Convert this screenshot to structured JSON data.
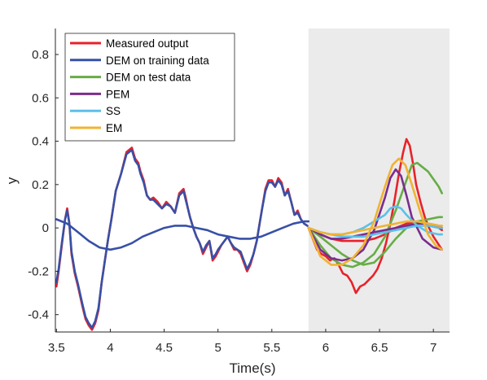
{
  "chart_data": {
    "type": "line",
    "title": "",
    "xlabel": "Time(s)",
    "ylabel": "y",
    "xlim": [
      3.49,
      7.15
    ],
    "ylim": [
      -0.48,
      0.92
    ],
    "xticks": [
      "3.5",
      "4",
      "4.5",
      "5",
      "5.5",
      "6",
      "6.5",
      "7"
    ],
    "yticks": [
      "-0.4",
      "-0.2",
      "0",
      "0.2",
      "0.4",
      "0.6",
      "0.8"
    ],
    "grid": false,
    "legend_position": "top-left",
    "test_region": {
      "x_start": 5.84,
      "x_end": 7.15,
      "color": "#ebebeb"
    },
    "series": [
      {
        "name": "Measured output",
        "color": "#e8222a",
        "runs": [
          {
            "x": [
              3.5,
              3.52,
              3.55,
              3.58,
              3.6,
              3.62,
              3.64,
              3.67,
              3.7,
              3.74,
              3.77,
              3.8,
              3.83,
              3.86,
              3.89,
              3.92,
              3.95,
              3.98,
              4.01,
              4.05,
              4.1,
              4.15,
              4.2,
              4.23,
              4.26,
              4.28,
              4.31,
              4.34,
              4.37,
              4.4,
              4.44,
              4.48,
              4.52,
              4.56,
              4.6,
              4.64,
              4.68,
              4.7,
              4.72,
              4.74,
              4.77,
              4.8,
              4.83,
              4.86,
              4.89,
              4.92,
              4.95,
              4.98,
              5.0,
              5.03,
              5.06,
              5.09,
              5.12,
              5.15,
              5.18,
              5.21,
              5.24,
              5.27,
              5.3,
              5.33,
              5.36,
              5.38,
              5.41,
              5.44,
              5.47,
              5.5,
              5.53,
              5.56,
              5.59,
              5.62,
              5.65,
              5.68,
              5.71,
              5.74,
              5.77,
              5.8,
              5.83
            ],
            "y": [
              -0.27,
              -0.2,
              -0.08,
              0.04,
              0.09,
              0.02,
              -0.12,
              -0.21,
              -0.27,
              -0.36,
              -0.42,
              -0.45,
              -0.47,
              -0.44,
              -0.38,
              -0.25,
              -0.15,
              -0.05,
              0.04,
              0.17,
              0.25,
              0.35,
              0.37,
              0.32,
              0.3,
              0.26,
              0.22,
              0.15,
              0.13,
              0.14,
              0.12,
              0.09,
              0.12,
              0.1,
              0.07,
              0.16,
              0.18,
              0.14,
              0.09,
              0.05,
              0.0,
              -0.04,
              -0.07,
              -0.12,
              -0.09,
              -0.06,
              -0.15,
              -0.13,
              -0.11,
              -0.08,
              -0.06,
              -0.04,
              -0.07,
              -0.1,
              -0.1,
              -0.12,
              -0.16,
              -0.2,
              -0.17,
              -0.12,
              -0.06,
              0.0,
              0.09,
              0.18,
              0.22,
              0.22,
              0.19,
              0.23,
              0.21,
              0.15,
              0.18,
              0.12,
              0.06,
              0.08,
              0.04,
              0.02,
              0.01
            ]
          },
          {
            "x": [
              5.84,
              5.88,
              5.92,
              5.96,
              6.0,
              6.04,
              6.08,
              6.12,
              6.16,
              6.2,
              6.24,
              6.28,
              6.32,
              6.36,
              6.4,
              6.44,
              6.48,
              6.52,
              6.56,
              6.6,
              6.64,
              6.68,
              6.72,
              6.75,
              6.78,
              6.81,
              6.84,
              6.88,
              6.92,
              6.96,
              7.0,
              7.04,
              7.08
            ],
            "y": [
              0.0,
              -0.05,
              -0.1,
              -0.12,
              -0.13,
              -0.15,
              -0.14,
              -0.17,
              -0.21,
              -0.22,
              -0.25,
              -0.3,
              -0.27,
              -0.26,
              -0.24,
              -0.22,
              -0.19,
              -0.14,
              -0.07,
              0.02,
              0.13,
              0.25,
              0.35,
              0.41,
              0.38,
              0.3,
              0.2,
              0.12,
              0.05,
              0.0,
              -0.04,
              -0.07,
              -0.1
            ]
          },
          {
            "x": [
              5.84,
              5.95,
              6.05,
              6.15,
              6.25,
              6.35,
              6.45,
              6.55,
              6.65,
              6.75,
              6.85,
              6.95,
              7.05,
              7.08
            ],
            "y": [
              0.0,
              -0.03,
              -0.05,
              -0.06,
              -0.06,
              -0.06,
              -0.05,
              -0.03,
              0.0,
              0.02,
              0.03,
              0.02,
              0.0,
              -0.01
            ]
          }
        ]
      },
      {
        "name": "DEM on training data",
        "color": "#3850a6",
        "runs": [
          {
            "x": [
              3.5,
              3.52,
              3.55,
              3.58,
              3.6,
              3.62,
              3.64,
              3.67,
              3.7,
              3.74,
              3.77,
              3.8,
              3.83,
              3.86,
              3.89,
              3.92,
              3.95,
              3.98,
              4.01,
              4.05,
              4.1,
              4.15,
              4.2,
              4.23,
              4.26,
              4.28,
              4.31,
              4.34,
              4.37,
              4.4,
              4.44,
              4.48,
              4.52,
              4.56,
              4.6,
              4.64,
              4.68,
              4.7,
              4.72,
              4.74,
              4.77,
              4.8,
              4.83,
              4.86,
              4.89,
              4.92,
              4.95,
              4.98,
              5.0,
              5.03,
              5.06,
              5.09,
              5.12,
              5.15,
              5.18,
              5.21,
              5.24,
              5.27,
              5.3,
              5.33,
              5.36,
              5.38,
              5.41,
              5.44,
              5.47,
              5.5,
              5.53,
              5.56,
              5.59,
              5.62,
              5.65,
              5.68,
              5.71,
              5.74,
              5.77,
              5.8,
              5.83
            ],
            "y": [
              -0.25,
              -0.19,
              -0.07,
              0.04,
              0.08,
              0.02,
              -0.11,
              -0.2,
              -0.26,
              -0.35,
              -0.41,
              -0.44,
              -0.46,
              -0.43,
              -0.37,
              -0.25,
              -0.15,
              -0.05,
              0.04,
              0.17,
              0.25,
              0.34,
              0.36,
              0.31,
              0.29,
              0.25,
              0.21,
              0.15,
              0.13,
              0.13,
              0.11,
              0.09,
              0.11,
              0.1,
              0.07,
              0.15,
              0.17,
              0.13,
              0.09,
              0.05,
              0.0,
              -0.04,
              -0.07,
              -0.11,
              -0.08,
              -0.06,
              -0.14,
              -0.12,
              -0.1,
              -0.08,
              -0.06,
              -0.04,
              -0.07,
              -0.09,
              -0.1,
              -0.11,
              -0.15,
              -0.19,
              -0.16,
              -0.12,
              -0.06,
              0.0,
              0.09,
              0.17,
              0.21,
              0.21,
              0.19,
              0.22,
              0.2,
              0.15,
              0.17,
              0.12,
              0.06,
              0.07,
              0.04,
              0.02,
              0.01
            ]
          },
          {
            "x": [
              3.5,
              3.6,
              3.7,
              3.8,
              3.9,
              4.0,
              4.1,
              4.2,
              4.3,
              4.4,
              4.5,
              4.6,
              4.7,
              4.8,
              4.9,
              5.0,
              5.1,
              5.2,
              5.3,
              5.4,
              5.5,
              5.6,
              5.7,
              5.8,
              5.84
            ],
            "y": [
              0.04,
              0.02,
              -0.02,
              -0.06,
              -0.09,
              -0.1,
              -0.09,
              -0.07,
              -0.04,
              -0.02,
              0.0,
              0.01,
              0.01,
              0.0,
              -0.01,
              -0.03,
              -0.04,
              -0.05,
              -0.05,
              -0.04,
              -0.02,
              0.0,
              0.02,
              0.03,
              0.03
            ]
          }
        ]
      },
      {
        "name": "DEM on test data",
        "color": "#67ad45",
        "runs": [
          {
            "x": [
              5.84,
              5.95,
              6.05,
              6.15,
              6.25,
              6.35,
              6.45,
              6.55,
              6.65,
              6.75,
              6.8,
              6.85,
              6.95,
              7.05,
              7.08
            ],
            "y": [
              0.0,
              -0.08,
              -0.14,
              -0.17,
              -0.18,
              -0.16,
              -0.12,
              -0.04,
              0.08,
              0.22,
              0.29,
              0.3,
              0.26,
              0.19,
              0.16
            ]
          },
          {
            "x": [
              5.84,
              5.95,
              6.05,
              6.15,
              6.25,
              6.35,
              6.45,
              6.55,
              6.65,
              6.75,
              6.85,
              6.95,
              7.05,
              7.08
            ],
            "y": [
              0.0,
              -0.04,
              -0.08,
              -0.12,
              -0.15,
              -0.17,
              -0.16,
              -0.11,
              -0.05,
              0.0,
              0.03,
              0.04,
              0.05,
              0.05
            ]
          }
        ]
      },
      {
        "name": "PEM",
        "color": "#7a2d8c",
        "runs": [
          {
            "x": [
              5.84,
              5.95,
              6.05,
              6.15,
              6.25,
              6.35,
              6.45,
              6.55,
              6.6,
              6.65,
              6.7,
              6.75,
              6.8,
              6.9,
              7.0,
              7.08
            ],
            "y": [
              0.0,
              -0.1,
              -0.14,
              -0.15,
              -0.14,
              -0.1,
              -0.01,
              0.14,
              0.23,
              0.27,
              0.24,
              0.15,
              0.05,
              -0.05,
              -0.09,
              -0.1
            ]
          },
          {
            "x": [
              5.84,
              5.95,
              6.05,
              6.15,
              6.25,
              6.35,
              6.45,
              6.55,
              6.65,
              6.75,
              6.85,
              6.95,
              7.05,
              7.08
            ],
            "y": [
              0.0,
              -0.03,
              -0.05,
              -0.05,
              -0.04,
              -0.03,
              -0.02,
              -0.01,
              0.0,
              0.01,
              0.02,
              0.02,
              0.01,
              0.0
            ]
          }
        ]
      },
      {
        "name": "SS",
        "color": "#5cc0ea",
        "runs": [
          {
            "x": [
              5.84,
              5.95,
              6.05,
              6.15,
              6.25,
              6.35,
              6.45,
              6.55,
              6.6,
              6.65,
              6.7,
              6.75,
              6.85,
              6.95,
              7.05,
              7.08
            ],
            "y": [
              0.0,
              -0.02,
              -0.03,
              -0.03,
              -0.02,
              0.0,
              0.03,
              0.06,
              0.09,
              0.1,
              0.09,
              0.06,
              0.01,
              -0.02,
              -0.03,
              -0.03
            ]
          },
          {
            "x": [
              5.84,
              5.95,
              6.05,
              6.15,
              6.25,
              6.35,
              6.45,
              6.55,
              6.65,
              6.75,
              6.85,
              6.95,
              7.05,
              7.08
            ],
            "y": [
              0.0,
              -0.02,
              -0.03,
              -0.04,
              -0.04,
              -0.04,
              -0.03,
              -0.02,
              -0.01,
              0.0,
              0.01,
              0.01,
              0.0,
              0.0
            ]
          }
        ]
      },
      {
        "name": "EM",
        "color": "#f0b331",
        "runs": [
          {
            "x": [
              5.84,
              5.95,
              6.05,
              6.15,
              6.25,
              6.35,
              6.45,
              6.55,
              6.62,
              6.68,
              6.74,
              6.8,
              6.88,
              6.95,
              7.02,
              7.08
            ],
            "y": [
              0.0,
              -0.13,
              -0.17,
              -0.17,
              -0.14,
              -0.08,
              0.03,
              0.19,
              0.29,
              0.32,
              0.29,
              0.2,
              0.07,
              -0.03,
              -0.08,
              -0.1
            ]
          },
          {
            "x": [
              5.84,
              5.95,
              6.05,
              6.15,
              6.25,
              6.35,
              6.45,
              6.55,
              6.65,
              6.75,
              6.85,
              6.95,
              7.05,
              7.08
            ],
            "y": [
              0.0,
              -0.02,
              -0.03,
              -0.03,
              -0.02,
              -0.01,
              0.0,
              0.01,
              0.02,
              0.03,
              0.03,
              0.02,
              0.01,
              0.01
            ]
          }
        ]
      }
    ]
  }
}
